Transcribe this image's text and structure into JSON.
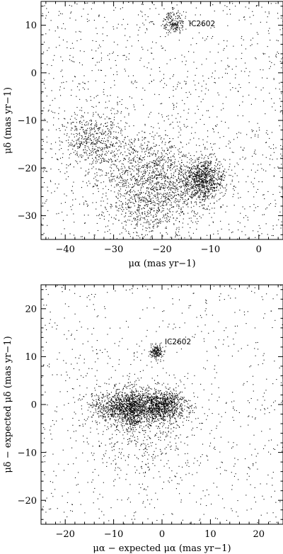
{
  "chart_data": [
    {
      "type": "scatter",
      "title": "",
      "xlabel": "μα (mas yr−1)",
      "ylabel": "μδ (mas yr−1)",
      "xlim": [
        -45,
        5
      ],
      "ylim": [
        -35,
        15
      ],
      "xticks": [
        "−40",
        "−30",
        "−20",
        "−10",
        "0"
      ],
      "yticks": [
        "−30",
        "−20",
        "−10",
        "0",
        "10"
      ],
      "grid": false,
      "annotation": {
        "text": "IC2602",
        "x": -14.5,
        "y": 10.3
      },
      "background_points": 1300,
      "clusters": [
        {
          "label": "IC2602",
          "x": -17.6,
          "y": 10.6,
          "sx": 1.1,
          "sy": 1.2,
          "n": 180
        },
        {
          "x": -11.5,
          "y": -22.5,
          "sx": 2.3,
          "sy": 2.3,
          "n": 900
        },
        {
          "x": -21.0,
          "y": -24.0,
          "sx": 5.0,
          "sy": 3.6,
          "n": 800
        },
        {
          "x": -34.5,
          "y": -13.5,
          "sx": 3.2,
          "sy": 3.0,
          "n": 450
        },
        {
          "x": -25.0,
          "y": -18.0,
          "sx": 5.0,
          "sy": 3.0,
          "n": 400
        },
        {
          "x": -23.0,
          "y": -29.5,
          "sx": 4.5,
          "sy": 3.0,
          "n": 300
        }
      ]
    },
    {
      "type": "scatter",
      "title": "",
      "xlabel": "μα − expected μα (mas yr−1)",
      "ylabel": "μδ − expected μδ (mas yr−1)",
      "xlim": [
        -25,
        25
      ],
      "ylim": [
        -25,
        25
      ],
      "xticks": [
        "−20",
        "−10",
        "0",
        "10",
        "20"
      ],
      "yticks": [
        "−20",
        "−10",
        "0",
        "10",
        "20"
      ],
      "grid": false,
      "annotation": {
        "text": "IC2602",
        "x": 0.5,
        "y": 12.0
      },
      "background_points": 800,
      "clusters": [
        {
          "label": "IC2602",
          "x": -1.2,
          "y": 11.0,
          "sx": 0.7,
          "sy": 0.7,
          "n": 170
        },
        {
          "x": -6.0,
          "y": -0.6,
          "sx": 4.2,
          "sy": 1.6,
          "n": 1300
        },
        {
          "x": 0.3,
          "y": -0.2,
          "sx": 2.3,
          "sy": 1.5,
          "n": 600
        },
        {
          "x": -6.5,
          "y": -1.5,
          "sx": 1.2,
          "sy": 2.4,
          "n": 300
        },
        {
          "x": -4.0,
          "y": -4.0,
          "sx": 6.0,
          "sy": 5.0,
          "n": 500
        }
      ]
    }
  ]
}
